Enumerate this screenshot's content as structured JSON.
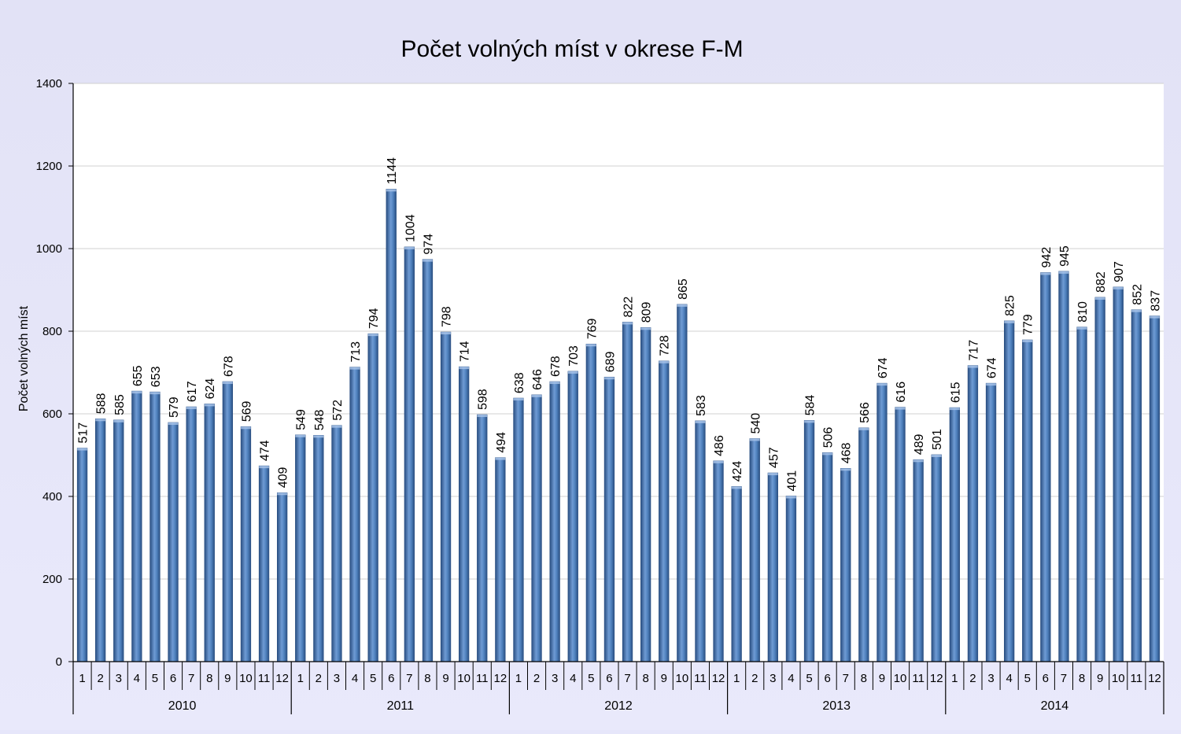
{
  "chart_data": {
    "type": "bar",
    "title": "Počet volných míst v okrese F-M",
    "xlabel": "",
    "ylabel": "Počet volných míst",
    "ylim": [
      0,
      1400
    ],
    "yticks": [
      0,
      200,
      400,
      600,
      800,
      1000,
      1200,
      1400
    ],
    "grid": true,
    "legend": "none",
    "colors": {
      "bar": "#4f81bd",
      "bar_dark": "#2a4f82",
      "bar_light": "#a9c4ea",
      "grid": "#d0d0d0",
      "plot_bg": "#ffffff",
      "page_bg": "#e6e6fa"
    },
    "groups": [
      {
        "year": "2010",
        "months": [
          "1",
          "2",
          "3",
          "4",
          "5",
          "6",
          "7",
          "8",
          "9",
          "10",
          "11",
          "12"
        ],
        "values": [
          517,
          588,
          585,
          655,
          653,
          579,
          617,
          624,
          678,
          569,
          474,
          409
        ]
      },
      {
        "year": "2011",
        "months": [
          "1",
          "2",
          "3",
          "4",
          "5",
          "6",
          "7",
          "8",
          "9",
          "10",
          "11",
          "12"
        ],
        "values": [
          549,
          548,
          572,
          713,
          794,
          1144,
          1004,
          974,
          798,
          714,
          598,
          494
        ]
      },
      {
        "year": "2012",
        "months": [
          "1",
          "2",
          "3",
          "4",
          "5",
          "6",
          "7",
          "8",
          "9",
          "10",
          "11",
          "12"
        ],
        "values": [
          638,
          646,
          678,
          703,
          769,
          689,
          822,
          809,
          728,
          865,
          583,
          486
        ]
      },
      {
        "year": "2013",
        "months": [
          "1",
          "2",
          "3",
          "4",
          "5",
          "6",
          "7",
          "8",
          "9",
          "10",
          "11",
          "12"
        ],
        "values": [
          424,
          540,
          457,
          401,
          584,
          506,
          468,
          566,
          674,
          616,
          489,
          501
        ]
      },
      {
        "year": "2014",
        "months": [
          "1",
          "2",
          "3",
          "4",
          "5",
          "6",
          "7",
          "8",
          "9",
          "10",
          "11",
          "12"
        ],
        "values": [
          615,
          717,
          674,
          825,
          779,
          942,
          945,
          810,
          882,
          907,
          852,
          837
        ]
      }
    ]
  }
}
